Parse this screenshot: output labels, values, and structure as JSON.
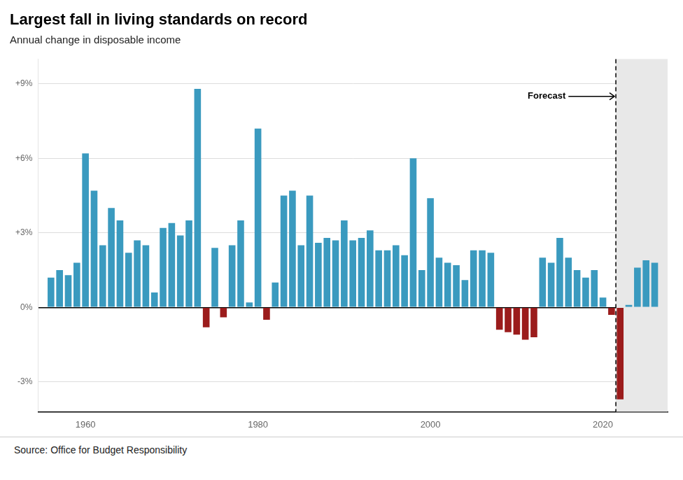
{
  "chart_data": {
    "type": "bar",
    "title": "Largest fall in living standards on record",
    "subtitle": "Annual change in disposable income",
    "source": "Source: Office for Budget Responsibility",
    "x": [
      1956,
      1957,
      1958,
      1959,
      1960,
      1961,
      1962,
      1963,
      1964,
      1965,
      1966,
      1967,
      1968,
      1969,
      1970,
      1971,
      1972,
      1973,
      1974,
      1975,
      1976,
      1977,
      1978,
      1979,
      1980,
      1981,
      1982,
      1983,
      1984,
      1985,
      1986,
      1987,
      1988,
      1989,
      1990,
      1991,
      1992,
      1993,
      1994,
      1995,
      1996,
      1997,
      1998,
      1999,
      2000,
      2001,
      2002,
      2003,
      2004,
      2005,
      2006,
      2007,
      2008,
      2009,
      2010,
      2011,
      2012,
      2013,
      2014,
      2015,
      2016,
      2017,
      2018,
      2019,
      2020,
      2021,
      2022,
      2023,
      2024,
      2025,
      2026
    ],
    "values": [
      1.2,
      1.5,
      1.3,
      1.8,
      6.2,
      4.7,
      2.5,
      4.0,
      3.5,
      2.2,
      2.7,
      2.5,
      0.6,
      3.2,
      3.4,
      2.9,
      3.5,
      8.8,
      -0.8,
      2.4,
      -0.4,
      2.5,
      3.5,
      0.2,
      7.2,
      -0.5,
      1.0,
      4.5,
      4.7,
      2.5,
      4.5,
      2.6,
      2.8,
      2.7,
      3.5,
      2.7,
      2.8,
      3.1,
      2.3,
      2.3,
      2.5,
      2.1,
      6.0,
      1.5,
      4.4,
      2.0,
      1.8,
      1.7,
      1.1,
      2.3,
      2.3,
      2.2,
      -0.9,
      -1.0,
      -1.1,
      -1.3,
      -1.2,
      2.0,
      1.8,
      2.8,
      2.0,
      1.5,
      1.2,
      1.5,
      0.4,
      -0.3,
      -3.7,
      0.1,
      1.6,
      1.9,
      1.8
    ],
    "colors": [
      "#3a9abf",
      "#3a9abf",
      "#3a9abf",
      "#3a9abf",
      "#3a9abf",
      "#3a9abf",
      "#3a9abf",
      "#3a9abf",
      "#3a9abf",
      "#3a9abf",
      "#3a9abf",
      "#3a9abf",
      "#3a9abf",
      "#3a9abf",
      "#3a9abf",
      "#3a9abf",
      "#3a9abf",
      "#3a9abf",
      "#9b1c1c",
      "#3a9abf",
      "#9b1c1c",
      "#3a9abf",
      "#3a9abf",
      "#3a9abf",
      "#3a9abf",
      "#9b1c1c",
      "#3a9abf",
      "#3a9abf",
      "#3a9abf",
      "#3a9abf",
      "#3a9abf",
      "#3a9abf",
      "#3a9abf",
      "#3a9abf",
      "#3a9abf",
      "#3a9abf",
      "#3a9abf",
      "#3a9abf",
      "#3a9abf",
      "#3a9abf",
      "#3a9abf",
      "#3a9abf",
      "#3a9abf",
      "#3a9abf",
      "#3a9abf",
      "#3a9abf",
      "#3a9abf",
      "#3a9abf",
      "#3a9abf",
      "#3a9abf",
      "#3a9abf",
      "#3a9abf",
      "#9b1c1c",
      "#9b1c1c",
      "#9b1c1c",
      "#9b1c1c",
      "#9b1c1c",
      "#3a9abf",
      "#3a9abf",
      "#3a9abf",
      "#3a9abf",
      "#3a9abf",
      "#3a9abf",
      "#3a9abf",
      "#3a9abf",
      "#9b1c1c",
      "#9b1c1c",
      "#3a9abf",
      "#3a9abf",
      "#3a9abf",
      "#3a9abf"
    ],
    "xlim": [
      1954.5,
      2027.5
    ],
    "xticks": [
      1960,
      1980,
      2000,
      2020
    ],
    "ylim": [
      -4.2,
      10.0
    ],
    "yticks": [
      {
        "value": -3,
        "label": "-3%"
      },
      {
        "value": 0,
        "label": "0%"
      },
      {
        "value": 3,
        "label": "+3%"
      },
      {
        "value": 6,
        "label": "+6%"
      },
      {
        "value": 9,
        "label": "+9%"
      }
    ],
    "grid": "y",
    "annotations": [
      {
        "kind": "span",
        "from": 2021.5,
        "color": "#e8e8e8"
      },
      {
        "kind": "vline",
        "x": 2021.5,
        "line_style": "dashed"
      },
      {
        "kind": "text",
        "text": "Forecast",
        "x": 2016,
        "y": 8.5,
        "arrow_to": 2021.5
      }
    ]
  }
}
